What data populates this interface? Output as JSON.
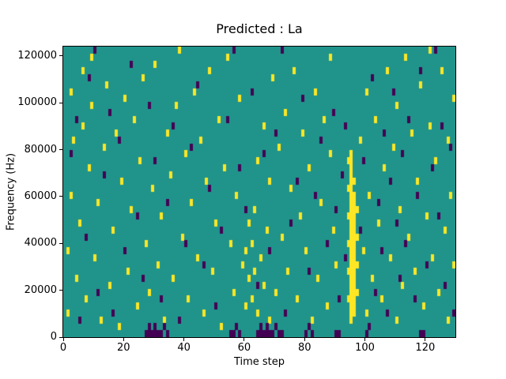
{
  "chart_data": {
    "type": "heatmap",
    "title": "Predicted : La",
    "xlabel": "Time step",
    "ylabel": "Frequency (Hz)",
    "xlim": [
      0,
      130
    ],
    "ylim": [
      0,
      124000
    ],
    "xticks": [
      0,
      20,
      40,
      60,
      80,
      100,
      120
    ],
    "yticks": [
      0,
      20000,
      40000,
      60000,
      80000,
      100000,
      120000
    ],
    "grid_cols": 130,
    "grid_rows": 42,
    "legend": "none",
    "grid": false,
    "colors": {
      "mid": "#20948b",
      "high": "#fde725",
      "low": "#440154"
    },
    "value_meaning": {
      "low": 0,
      "mid": 1,
      "high": 2
    },
    "cells_high": [
      [
        1,
        3
      ],
      [
        1,
        12
      ],
      [
        2,
        20
      ],
      [
        3,
        28
      ],
      [
        2,
        35
      ],
      [
        4,
        8
      ],
      [
        5,
        16
      ],
      [
        6,
        30
      ],
      [
        6,
        38
      ],
      [
        7,
        5
      ],
      [
        8,
        24
      ],
      [
        9,
        33
      ],
      [
        9,
        40
      ],
      [
        10,
        11
      ],
      [
        11,
        19
      ],
      [
        12,
        2
      ],
      [
        13,
        27
      ],
      [
        14,
        36
      ],
      [
        15,
        7
      ],
      [
        16,
        15
      ],
      [
        17,
        29
      ],
      [
        18,
        1
      ],
      [
        19,
        22
      ],
      [
        20,
        34
      ],
      [
        21,
        9
      ],
      [
        22,
        18
      ],
      [
        23,
        31
      ],
      [
        24,
        4
      ],
      [
        25,
        25
      ],
      [
        26,
        37
      ],
      [
        27,
        13
      ],
      [
        28,
        6
      ],
      [
        29,
        21
      ],
      [
        30,
        39
      ],
      [
        31,
        10
      ],
      [
        32,
        17
      ],
      [
        33,
        2
      ],
      [
        34,
        29
      ],
      [
        35,
        23
      ],
      [
        36,
        8
      ],
      [
        37,
        33
      ],
      [
        38,
        41
      ],
      [
        39,
        14
      ],
      [
        40,
        26
      ],
      [
        41,
        5
      ],
      [
        42,
        19
      ],
      [
        43,
        35
      ],
      [
        44,
        11
      ],
      [
        45,
        28
      ],
      [
        46,
        3
      ],
      [
        47,
        22
      ],
      [
        48,
        38
      ],
      [
        49,
        9
      ],
      [
        50,
        16
      ],
      [
        51,
        31
      ],
      [
        52,
        1
      ],
      [
        53,
        24
      ],
      [
        54,
        40
      ],
      [
        55,
        13
      ],
      [
        56,
        6
      ],
      [
        57,
        20
      ],
      [
        58,
        34
      ],
      [
        59,
        10
      ],
      [
        60,
        4
      ],
      [
        60,
        12
      ],
      [
        61,
        8
      ],
      [
        61,
        16
      ],
      [
        62,
        5
      ],
      [
        62,
        13
      ],
      [
        63,
        9
      ],
      [
        63,
        18
      ],
      [
        64,
        3
      ],
      [
        64,
        25
      ],
      [
        65,
        11
      ],
      [
        66,
        7
      ],
      [
        66,
        30
      ],
      [
        67,
        15
      ],
      [
        68,
        2
      ],
      [
        68,
        22
      ],
      [
        69,
        37
      ],
      [
        70,
        6
      ],
      [
        71,
        27
      ],
      [
        72,
        14
      ],
      [
        73,
        32
      ],
      [
        74,
        9
      ],
      [
        75,
        21
      ],
      [
        76,
        38
      ],
      [
        77,
        5
      ],
      [
        78,
        17
      ],
      [
        79,
        29
      ],
      [
        80,
        12
      ],
      [
        81,
        24
      ],
      [
        82,
        2
      ],
      [
        83,
        35
      ],
      [
        84,
        8
      ],
      [
        85,
        19
      ],
      [
        86,
        31
      ],
      [
        87,
        4
      ],
      [
        88,
        26
      ],
      [
        88,
        40
      ],
      [
        89,
        15
      ],
      [
        90,
        10
      ],
      [
        94,
        5
      ],
      [
        94,
        9
      ],
      [
        94,
        13
      ],
      [
        94,
        17
      ],
      [
        94,
        21
      ],
      [
        94,
        25
      ],
      [
        95,
        2
      ],
      [
        95,
        3
      ],
      [
        95,
        4
      ],
      [
        95,
        5
      ],
      [
        95,
        6
      ],
      [
        95,
        7
      ],
      [
        95,
        8
      ],
      [
        95,
        9
      ],
      [
        95,
        10
      ],
      [
        95,
        11
      ],
      [
        95,
        12
      ],
      [
        95,
        13
      ],
      [
        95,
        14
      ],
      [
        95,
        15
      ],
      [
        95,
        16
      ],
      [
        95,
        17
      ],
      [
        95,
        18
      ],
      [
        95,
        19
      ],
      [
        95,
        20
      ],
      [
        95,
        21
      ],
      [
        95,
        22
      ],
      [
        95,
        23
      ],
      [
        95,
        24
      ],
      [
        95,
        25
      ],
      [
        95,
        26
      ],
      [
        96,
        3
      ],
      [
        96,
        4
      ],
      [
        96,
        5
      ],
      [
        96,
        6
      ],
      [
        96,
        7
      ],
      [
        96,
        8
      ],
      [
        96,
        9
      ],
      [
        96,
        10
      ],
      [
        96,
        11
      ],
      [
        96,
        12
      ],
      [
        96,
        13
      ],
      [
        96,
        14
      ],
      [
        96,
        15
      ],
      [
        96,
        16
      ],
      [
        96,
        17
      ],
      [
        96,
        18
      ],
      [
        96,
        19
      ],
      [
        96,
        20
      ],
      [
        96,
        22
      ],
      [
        97,
        6
      ],
      [
        97,
        10
      ],
      [
        97,
        14
      ],
      [
        97,
        18
      ],
      [
        98,
        28
      ],
      [
        99,
        12
      ],
      [
        100,
        3
      ],
      [
        100,
        35
      ],
      [
        101,
        20
      ],
      [
        102,
        8
      ],
      [
        103,
        31
      ],
      [
        104,
        16
      ],
      [
        105,
        5
      ],
      [
        106,
        24
      ],
      [
        107,
        38
      ],
      [
        108,
        11
      ],
      [
        109,
        27
      ],
      [
        110,
        2
      ],
      [
        110,
        33
      ],
      [
        111,
        18
      ],
      [
        112,
        7
      ],
      [
        113,
        40
      ],
      [
        114,
        14
      ],
      [
        115,
        29
      ],
      [
        116,
        9
      ],
      [
        117,
        22
      ],
      [
        118,
        36
      ],
      [
        119,
        4
      ],
      [
        120,
        17
      ],
      [
        121,
        30
      ],
      [
        121,
        41
      ],
      [
        122,
        11
      ],
      [
        123,
        25
      ],
      [
        124,
        6
      ],
      [
        125,
        38
      ],
      [
        126,
        15
      ],
      [
        127,
        2
      ],
      [
        127,
        28
      ],
      [
        128,
        20
      ],
      [
        129,
        34
      ],
      [
        129,
        10
      ]
    ],
    "cells_low": [
      [
        27,
        0
      ],
      [
        28,
        0
      ],
      [
        28,
        1
      ],
      [
        29,
        0
      ],
      [
        30,
        0
      ],
      [
        30,
        1
      ],
      [
        31,
        0
      ],
      [
        32,
        0
      ],
      [
        33,
        1
      ],
      [
        34,
        0
      ],
      [
        55,
        0
      ],
      [
        56,
        0
      ],
      [
        57,
        1
      ],
      [
        58,
        0
      ],
      [
        64,
        0
      ],
      [
        65,
        0
      ],
      [
        65,
        1
      ],
      [
        66,
        0
      ],
      [
        67,
        0
      ],
      [
        67,
        1
      ],
      [
        68,
        0
      ],
      [
        69,
        0
      ],
      [
        70,
        1
      ],
      [
        71,
        0
      ],
      [
        72,
        0
      ],
      [
        80,
        0
      ],
      [
        81,
        1
      ],
      [
        82,
        0
      ],
      [
        90,
        0
      ],
      [
        91,
        0
      ],
      [
        100,
        0
      ],
      [
        101,
        1
      ],
      [
        118,
        0
      ],
      [
        119,
        0
      ],
      [
        2,
        26
      ],
      [
        4,
        31
      ],
      [
        5,
        2
      ],
      [
        7,
        14
      ],
      [
        8,
        37
      ],
      [
        10,
        41
      ],
      [
        11,
        6
      ],
      [
        13,
        23
      ],
      [
        15,
        32
      ],
      [
        16,
        3
      ],
      [
        18,
        28
      ],
      [
        20,
        12
      ],
      [
        22,
        39
      ],
      [
        24,
        17
      ],
      [
        26,
        8
      ],
      [
        28,
        33
      ],
      [
        30,
        25
      ],
      [
        32,
        5
      ],
      [
        34,
        19
      ],
      [
        36,
        30
      ],
      [
        38,
        2
      ],
      [
        40,
        13
      ],
      [
        42,
        27
      ],
      [
        44,
        36
      ],
      [
        46,
        10
      ],
      [
        48,
        21
      ],
      [
        50,
        4
      ],
      [
        52,
        15
      ],
      [
        54,
        31
      ],
      [
        56,
        41
      ],
      [
        58,
        24
      ],
      [
        60,
        18
      ],
      [
        62,
        35
      ],
      [
        64,
        7
      ],
      [
        66,
        26
      ],
      [
        68,
        12
      ],
      [
        70,
        29
      ],
      [
        72,
        41
      ],
      [
        73,
        3
      ],
      [
        75,
        16
      ],
      [
        77,
        22
      ],
      [
        79,
        34
      ],
      [
        81,
        9
      ],
      [
        83,
        20
      ],
      [
        85,
        28
      ],
      [
        87,
        13
      ],
      [
        89,
        32
      ],
      [
        90,
        18
      ],
      [
        91,
        5
      ],
      [
        92,
        23
      ],
      [
        93,
        11
      ],
      [
        93,
        30
      ],
      [
        98,
        15
      ],
      [
        99,
        25
      ],
      [
        102,
        37
      ],
      [
        103,
        6
      ],
      [
        104,
        19
      ],
      [
        105,
        12
      ],
      [
        106,
        29
      ],
      [
        107,
        3
      ],
      [
        108,
        22
      ],
      [
        109,
        35
      ],
      [
        110,
        16
      ],
      [
        111,
        8
      ],
      [
        112,
        26
      ],
      [
        113,
        13
      ],
      [
        114,
        31
      ],
      [
        116,
        5
      ],
      [
        117,
        20
      ],
      [
        118,
        38
      ],
      [
        120,
        10
      ],
      [
        122,
        24
      ],
      [
        123,
        41
      ],
      [
        124,
        17
      ],
      [
        125,
        30
      ],
      [
        126,
        7
      ],
      [
        128,
        27
      ],
      [
        129,
        3
      ]
    ]
  }
}
